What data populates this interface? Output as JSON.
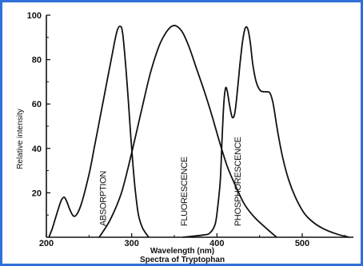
{
  "chart_data": {
    "type": "line",
    "title": "Spectra of Tryptophan",
    "xlabel": "Wavelength (nm)",
    "ylabel": "Relative intensity",
    "xlim": [
      200,
      560
    ],
    "ylim": [
      0,
      100
    ],
    "x_ticks": [
      "200",
      "300",
      "400",
      "500"
    ],
    "y_ticks": [
      "20",
      "40",
      "60",
      "80",
      "100"
    ],
    "grid": false,
    "series": [
      {
        "name": "ABSORPTION",
        "points": [
          [
            203,
            0
          ],
          [
            207,
            4
          ],
          [
            211,
            9
          ],
          [
            215,
            14
          ],
          [
            218,
            17
          ],
          [
            221,
            18
          ],
          [
            224,
            16
          ],
          [
            228,
            12
          ],
          [
            232,
            9.5
          ],
          [
            236,
            10.5
          ],
          [
            241,
            15
          ],
          [
            246,
            22
          ],
          [
            251,
            30
          ],
          [
            256,
            40
          ],
          [
            261,
            50
          ],
          [
            266,
            60
          ],
          [
            271,
            70
          ],
          [
            276,
            80
          ],
          [
            280,
            88
          ],
          [
            283,
            93
          ],
          [
            286,
            95
          ],
          [
            289,
            93
          ],
          [
            292,
            82
          ],
          [
            296,
            62
          ],
          [
            300,
            40
          ],
          [
            304,
            22
          ],
          [
            308,
            10
          ],
          [
            313,
            4
          ],
          [
            320,
            0
          ]
        ]
      },
      {
        "name": "FLUORESCENCE",
        "points": [
          [
            262,
            0
          ],
          [
            275,
            8
          ],
          [
            288,
            20
          ],
          [
            300,
            38
          ],
          [
            312,
            58
          ],
          [
            322,
            74
          ],
          [
            332,
            86
          ],
          [
            340,
            92
          ],
          [
            347,
            95
          ],
          [
            353,
            95
          ],
          [
            360,
            92
          ],
          [
            368,
            85
          ],
          [
            376,
            76
          ],
          [
            385,
            66
          ],
          [
            394,
            55
          ],
          [
            403,
            43
          ],
          [
            412,
            32
          ],
          [
            422,
            23
          ],
          [
            432,
            15
          ],
          [
            444,
            9
          ],
          [
            458,
            4
          ],
          [
            470,
            0
          ]
        ]
      },
      {
        "name": "PHOSPHORESCENCE",
        "points": [
          [
            360,
            0
          ],
          [
            384,
            1
          ],
          [
            392,
            2
          ],
          [
            398,
            6
          ],
          [
            401,
            14
          ],
          [
            404,
            26
          ],
          [
            406,
            44
          ],
          [
            408,
            60
          ],
          [
            410,
            67
          ],
          [
            412,
            66
          ],
          [
            415,
            59
          ],
          [
            418,
            54
          ],
          [
            421,
            56
          ],
          [
            424,
            66
          ],
          [
            427,
            78
          ],
          [
            430,
            88
          ],
          [
            433,
            94
          ],
          [
            436,
            94
          ],
          [
            439,
            88
          ],
          [
            442,
            78
          ],
          [
            446,
            70
          ],
          [
            451,
            66
          ],
          [
            457,
            65.5
          ],
          [
            462,
            65
          ],
          [
            466,
            60
          ],
          [
            471,
            48
          ],
          [
            477,
            36
          ],
          [
            484,
            26
          ],
          [
            492,
            18
          ],
          [
            502,
            11
          ],
          [
            512,
            7
          ],
          [
            524,
            4
          ],
          [
            540,
            1.5
          ],
          [
            555,
            0
          ]
        ]
      }
    ]
  }
}
